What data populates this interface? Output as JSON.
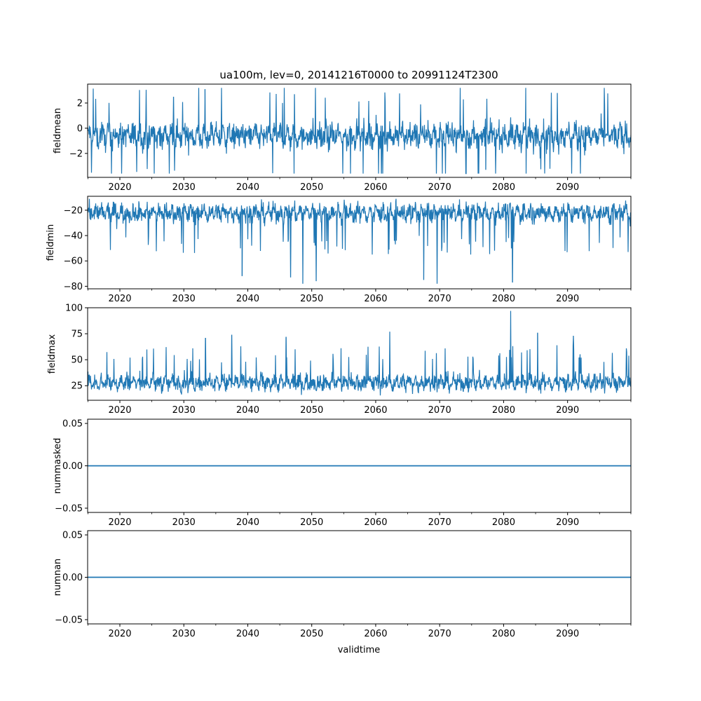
{
  "chart_data": {
    "title": "ua100m, lev=0, 20141216T0000 to 20991124T2300",
    "xlabel": "validtime",
    "type": "line",
    "line_color": "#1f77b4",
    "xlim": [
      2014.96,
      2099.9
    ],
    "x_ticks": [
      2020,
      2030,
      2040,
      2050,
      2060,
      2070,
      2080,
      2090
    ],
    "x_tick_labels": [
      "2020",
      "2030",
      "2040",
      "2050",
      "2060",
      "2070",
      "2080",
      "2090"
    ],
    "panels": [
      {
        "name": "fieldmean",
        "ylabel": "fieldmean",
        "ylim": [
          -3.9,
          3.5
        ],
        "y_ticks": [
          -2,
          0,
          2
        ],
        "y_tick_labels": [
          "−2",
          "0",
          "2"
        ],
        "series_summary": {
          "typical_low": -2.1,
          "typical_high": 0.9,
          "center": -0.6,
          "min": -3.6,
          "max": 3.2
        },
        "spikes": [
          {
            "x": 2033.3,
            "y": 3.1
          },
          {
            "x": 2045.7,
            "y": 3.2
          },
          {
            "x": 2047.3,
            "y": 2.7
          },
          {
            "x": 2028.4,
            "y": 2.5
          },
          {
            "x": 2060.9,
            "y": -3.6
          },
          {
            "x": 2077.2,
            "y": -3.3
          },
          {
            "x": 2088.4,
            "y": 2.8
          }
        ]
      },
      {
        "name": "fieldmin",
        "ylabel": "fieldmin",
        "ylim": [
          -82,
          -9
        ],
        "y_ticks": [
          -80,
          -60,
          -40,
          -20
        ],
        "y_tick_labels": [
          "−80",
          "−60",
          "−40",
          "−20"
        ],
        "series_summary": {
          "typical_low": -35,
          "typical_high": -13,
          "center": -22,
          "min": -78,
          "max": -11
        },
        "spikes": [
          {
            "x": 2048.6,
            "y": -78
          },
          {
            "x": 2050.7,
            "y": -76
          },
          {
            "x": 2069.6,
            "y": -78
          },
          {
            "x": 2067.5,
            "y": -75
          },
          {
            "x": 2081.4,
            "y": -77
          },
          {
            "x": 2046.7,
            "y": -73
          },
          {
            "x": 2039.1,
            "y": -72
          }
        ]
      },
      {
        "name": "fieldmax",
        "ylabel": "fieldmax",
        "ylim": [
          11,
          100
        ],
        "y_ticks": [
          25,
          50,
          75,
          100
        ],
        "y_tick_labels": [
          "25",
          "50",
          "75",
          "100"
        ],
        "series_summary": {
          "typical_low": 18,
          "typical_high": 42,
          "center": 28,
          "min": 14,
          "max": 97
        },
        "spikes": [
          {
            "x": 2081.1,
            "y": 97
          },
          {
            "x": 2062.2,
            "y": 77
          },
          {
            "x": 2085.3,
            "y": 76
          },
          {
            "x": 2037.5,
            "y": 74
          },
          {
            "x": 2046.0,
            "y": 72
          },
          {
            "x": 2033.4,
            "y": 71
          },
          {
            "x": 2090.9,
            "y": 73
          }
        ]
      },
      {
        "name": "nummasked",
        "ylabel": "nummasked",
        "ylim": [
          -0.055,
          0.055
        ],
        "y_ticks": [
          -0.05,
          0.0,
          0.05
        ],
        "y_tick_labels": [
          "−0.05",
          "0.00",
          "0.05"
        ],
        "constant_value": 0.0
      },
      {
        "name": "numnan",
        "ylabel": "numnan",
        "ylim": [
          -0.055,
          0.055
        ],
        "y_ticks": [
          -0.05,
          0.0,
          0.05
        ],
        "y_tick_labels": [
          "−0.05",
          "0.00",
          "0.05"
        ],
        "constant_value": 0.0
      }
    ]
  }
}
